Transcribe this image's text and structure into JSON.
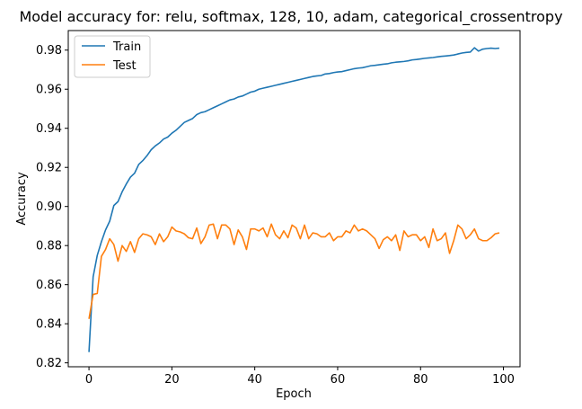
{
  "chart_data": {
    "type": "line",
    "title": "Model accuracy for: relu, softmax, 128, 10, adam, categorical_crossentropy",
    "xlabel": "Epoch",
    "ylabel": "Accuracy",
    "xlim": [
      -5,
      104
    ],
    "ylim": [
      0.818,
      0.99
    ],
    "xticks": [
      0,
      20,
      40,
      60,
      80,
      100
    ],
    "yticks": [
      0.82,
      0.84,
      0.86,
      0.88,
      0.9,
      0.92,
      0.94,
      0.96,
      0.98
    ],
    "ytick_labels": [
      "0.82",
      "0.84",
      "0.86",
      "0.88",
      "0.90",
      "0.92",
      "0.94",
      "0.96",
      "0.98"
    ],
    "legend": "upper-left",
    "grid": false,
    "series": [
      {
        "name": "Train",
        "color": "#1f77b4",
        "values": [
          0.8255,
          0.864,
          0.875,
          0.882,
          0.888,
          0.8925,
          0.9005,
          0.9025,
          0.9075,
          0.9115,
          0.915,
          0.917,
          0.9215,
          0.9235,
          0.926,
          0.929,
          0.931,
          0.9325,
          0.9345,
          0.9355,
          0.9375,
          0.939,
          0.941,
          0.943,
          0.944,
          0.945,
          0.947,
          0.948,
          0.9485,
          0.9495,
          0.9505,
          0.9515,
          0.9525,
          0.9535,
          0.9545,
          0.955,
          0.956,
          0.9565,
          0.9575,
          0.9585,
          0.959,
          0.96,
          0.9605,
          0.961,
          0.9615,
          0.962,
          0.9625,
          0.963,
          0.9635,
          0.964,
          0.9645,
          0.965,
          0.9655,
          0.966,
          0.9665,
          0.9668,
          0.967,
          0.9678,
          0.968,
          0.9685,
          0.9688,
          0.969,
          0.9695,
          0.97,
          0.9705,
          0.9708,
          0.971,
          0.9715,
          0.972,
          0.9722,
          0.9725,
          0.9728,
          0.973,
          0.9735,
          0.9738,
          0.974,
          0.9742,
          0.9745,
          0.975,
          0.9752,
          0.9755,
          0.9758,
          0.976,
          0.9762,
          0.9765,
          0.9768,
          0.977,
          0.9772,
          0.9775,
          0.978,
          0.9785,
          0.9788,
          0.979,
          0.9812,
          0.9795,
          0.9805,
          0.9808,
          0.981,
          0.9808,
          0.981
        ]
      },
      {
        "name": "Test",
        "color": "#ff7f0e",
        "values": [
          0.8425,
          0.855,
          0.8555,
          0.8745,
          0.878,
          0.8835,
          0.8805,
          0.872,
          0.88,
          0.877,
          0.882,
          0.8765,
          0.8835,
          0.886,
          0.8855,
          0.8845,
          0.8805,
          0.886,
          0.882,
          0.8845,
          0.8895,
          0.8875,
          0.887,
          0.886,
          0.884,
          0.8835,
          0.889,
          0.881,
          0.8845,
          0.8905,
          0.891,
          0.8835,
          0.8905,
          0.8905,
          0.8885,
          0.8805,
          0.888,
          0.8845,
          0.878,
          0.8885,
          0.8885,
          0.8875,
          0.889,
          0.8845,
          0.891,
          0.8855,
          0.8835,
          0.8875,
          0.884,
          0.8905,
          0.889,
          0.8835,
          0.8905,
          0.8835,
          0.8865,
          0.886,
          0.8845,
          0.8845,
          0.8865,
          0.8825,
          0.8845,
          0.8845,
          0.8875,
          0.8865,
          0.8905,
          0.8875,
          0.8885,
          0.8875,
          0.8855,
          0.8835,
          0.8785,
          0.883,
          0.8845,
          0.8825,
          0.8855,
          0.8775,
          0.8875,
          0.8845,
          0.8855,
          0.8855,
          0.8825,
          0.8845,
          0.879,
          0.8885,
          0.8825,
          0.8835,
          0.8865,
          0.876,
          0.8825,
          0.8905,
          0.8885,
          0.8835,
          0.8855,
          0.8885,
          0.8835,
          0.8825,
          0.8825,
          0.884,
          0.886,
          0.8865
        ]
      }
    ]
  }
}
